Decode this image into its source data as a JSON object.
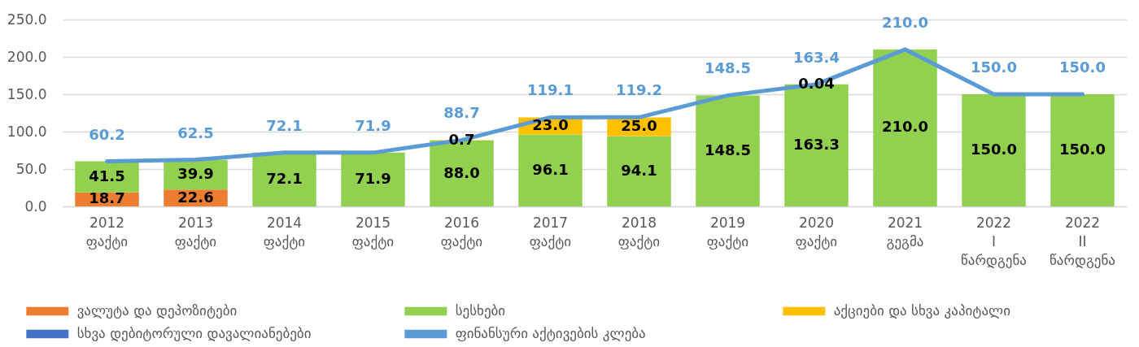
{
  "chart_data": {
    "type": "bar",
    "stacked": true,
    "categories": [
      "2012\nფაქტი",
      "2013\nფაქტი",
      "2014\nფაქტი",
      "2015\nფაქტი",
      "2016\nფაქტი",
      "2017\nფაქტი",
      "2018\nფაქტი",
      "2019\nფაქტი",
      "2020\nფაქტი",
      "2021\nგეგმა",
      "2022\nI\nწარდგენა",
      "2022\nII\nწარდგენა"
    ],
    "ylim": [
      0,
      250
    ],
    "yticks": [
      {
        "value": 0,
        "label": "0.0"
      },
      {
        "value": 50,
        "label": "50.0"
      },
      {
        "value": 100,
        "label": "100.0"
      },
      {
        "value": 150,
        "label": "150.0"
      },
      {
        "value": 200,
        "label": "200.0"
      },
      {
        "value": 250,
        "label": "250.0"
      }
    ],
    "grid": "y",
    "legend": "bottom",
    "series": [
      {
        "name": "ვალუტა და დეპოზიტები",
        "color": "#ed7d31",
        "values": [
          18.7,
          22.6,
          null,
          null,
          null,
          null,
          null,
          null,
          null,
          null,
          null,
          null
        ],
        "value_labels": [
          "18.7",
          "22.6",
          null,
          null,
          null,
          null,
          null,
          null,
          null,
          null,
          null,
          null
        ]
      },
      {
        "name": "სესხები",
        "color": "#92d050",
        "values": [
          41.5,
          39.9,
          72.1,
          71.9,
          88.0,
          96.1,
          94.1,
          148.5,
          163.3,
          210.0,
          150.0,
          150.0
        ],
        "value_labels": [
          "41.5",
          "39.9",
          "72.1",
          "71.9",
          "88.0",
          "96.1",
          "94.1",
          "148.5",
          "163.3",
          "210.0",
          "150.0",
          "150.0"
        ]
      },
      {
        "name": "აქციები და სხვა კაპიტალი",
        "color": "#ffc000",
        "values": [
          null,
          null,
          null,
          null,
          0.7,
          23.0,
          25.0,
          null,
          null,
          null,
          null,
          null
        ],
        "value_labels": [
          null,
          null,
          null,
          null,
          "0.7",
          "23.0",
          "25.0",
          null,
          null,
          null,
          null,
          null
        ]
      },
      {
        "name": "სხვა დებიტორული დავალიანებები",
        "color": "#4472c4",
        "values": [
          null,
          null,
          null,
          null,
          null,
          null,
          null,
          null,
          0.04,
          null,
          null,
          null
        ],
        "value_labels": [
          null,
          null,
          null,
          null,
          null,
          null,
          null,
          null,
          "0.04",
          null,
          null,
          null
        ]
      },
      {
        "name": "ფინანსური აქტივების კლება",
        "type": "line",
        "color": "#5b9bd5",
        "values": [
          60.2,
          62.5,
          72.1,
          71.9,
          88.7,
          119.1,
          119.2,
          148.5,
          163.4,
          210.0,
          150.0,
          150.0
        ],
        "value_labels": [
          "60.2",
          "62.5",
          "72.1",
          "71.9",
          "88.7",
          "119.1",
          "119.2",
          "148.5",
          "163.4",
          "210.0",
          "150.0",
          "150.0"
        ]
      }
    ]
  }
}
